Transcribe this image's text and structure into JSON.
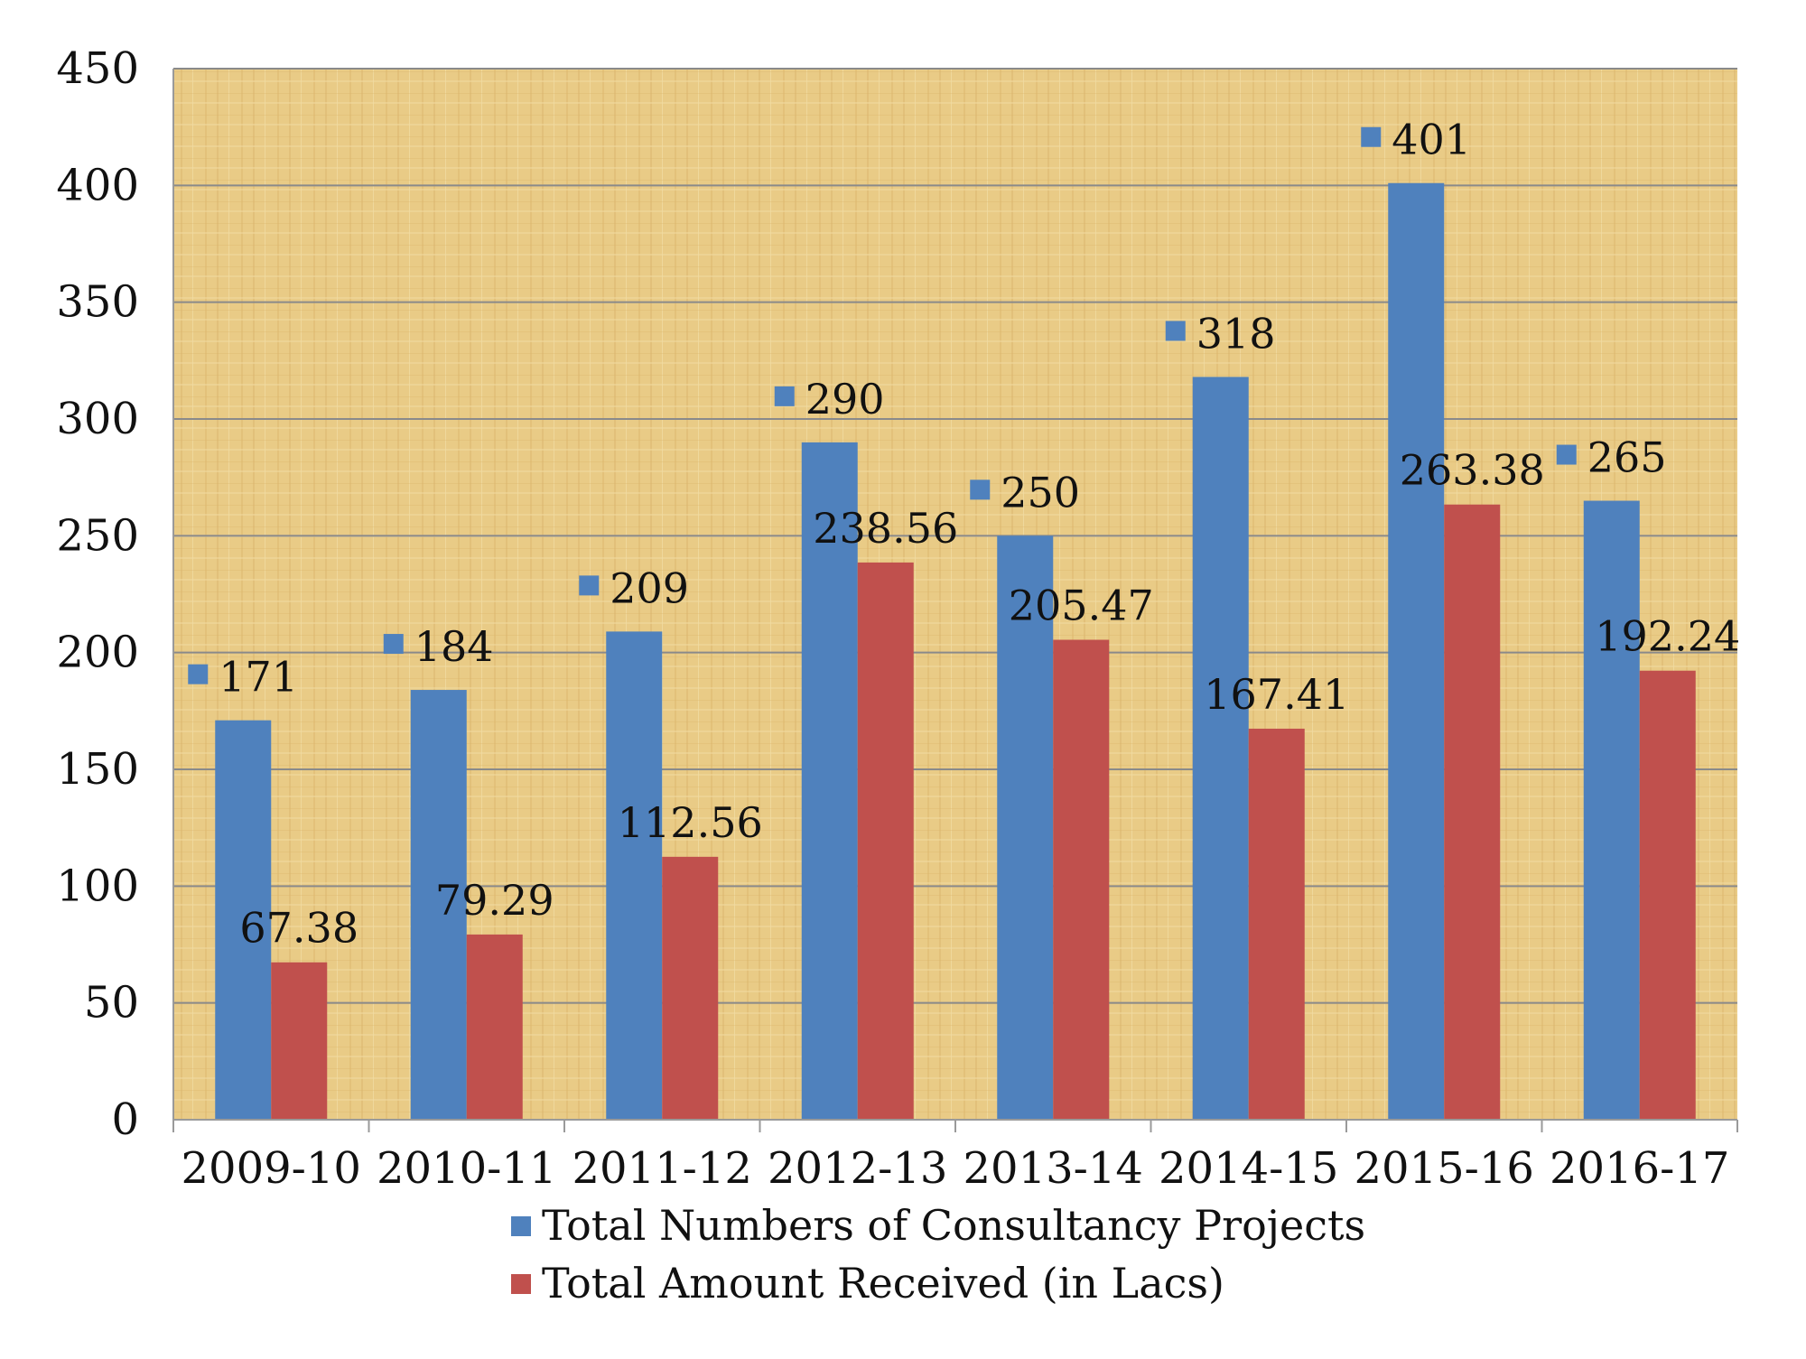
{
  "chart_data": {
    "type": "bar",
    "title": "",
    "xlabel": "",
    "ylabel": "",
    "ylim": [
      0,
      450
    ],
    "yticks": [
      0,
      50,
      100,
      150,
      200,
      250,
      300,
      350,
      400,
      450
    ],
    "grid": true,
    "legend_position": "bottom",
    "categories": [
      "2009-10",
      "2010-11",
      "2011-12",
      "2012-13",
      "2013-14",
      "2014-15",
      "2015-16",
      "2016-17"
    ],
    "series": [
      {
        "name": "Total Numbers of Consultancy Projects",
        "color": "#4F81BD",
        "values": [
          171,
          184,
          209,
          290,
          250,
          318,
          401,
          265
        ],
        "labels": [
          "171",
          "184",
          "209",
          "290",
          "250",
          "318",
          "401",
          "265"
        ]
      },
      {
        "name": "Total Amount Received (in Lacs)",
        "color": "#C0504D",
        "values": [
          67.38,
          79.29,
          112.56,
          238.56,
          205.47,
          167.41,
          263.38,
          192.24
        ],
        "labels": [
          "67.38",
          "79.29",
          "112.56",
          "238.56",
          "205.47",
          "167.41",
          "263.38",
          "192.24"
        ]
      }
    ],
    "colors": {
      "plot_background": "#E8C983",
      "gridline": "#8A8A8A",
      "axis": "#9A9A9A"
    }
  }
}
